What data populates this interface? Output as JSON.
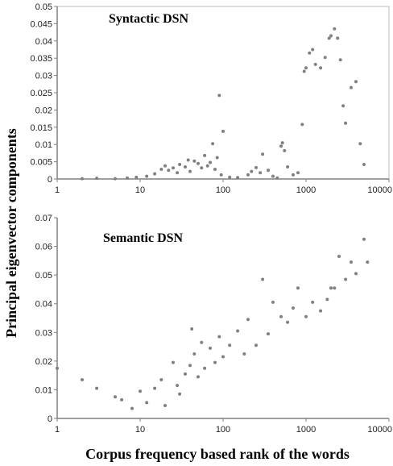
{
  "figure": {
    "ylabel": "Principal eigenvector components",
    "xlabel": "Corpus frequency based rank of the words"
  },
  "colors": {
    "points": "#808080",
    "axis": "#808080",
    "text": "#000000"
  },
  "chart_data": [
    {
      "type": "scatter",
      "title": "Syntactic DSN",
      "xscale": "log",
      "xlim": [
        1,
        10000
      ],
      "ylim": [
        0,
        0.05
      ],
      "xticks": [
        "1",
        "10",
        "100",
        "1000",
        "10000"
      ],
      "yticks": [
        "0",
        "0.005",
        "0.01",
        "0.015",
        "0.02",
        "0.025",
        "0.03",
        "0.035",
        "0.04",
        "0.045",
        "0.05"
      ],
      "grid": false,
      "series": [
        {
          "points": [
            [
              2,
              0.0001
            ],
            [
              3,
              0.0002
            ],
            [
              5,
              0.0001
            ],
            [
              7,
              0.0003
            ],
            [
              9,
              0.0005
            ],
            [
              12,
              0.0008
            ],
            [
              15,
              0.0015
            ],
            [
              18,
              0.0028
            ],
            [
              20,
              0.0038
            ],
            [
              22,
              0.0025
            ],
            [
              25,
              0.0032
            ],
            [
              28,
              0.0018
            ],
            [
              30,
              0.0042
            ],
            [
              35,
              0.0035
            ],
            [
              38,
              0.0055
            ],
            [
              40,
              0.0022
            ],
            [
              45,
              0.0052
            ],
            [
              50,
              0.0045
            ],
            [
              55,
              0.0032
            ],
            [
              60,
              0.0068
            ],
            [
              65,
              0.0038
            ],
            [
              70,
              0.0048
            ],
            [
              75,
              0.0102
            ],
            [
              80,
              0.0028
            ],
            [
              85,
              0.0062
            ],
            [
              90,
              0.0242
            ],
            [
              95,
              0.0012
            ],
            [
              100,
              0.0138
            ],
            [
              120,
              0.0005
            ],
            [
              150,
              0.0004
            ],
            [
              200,
              0.0012
            ],
            [
              220,
              0.0022
            ],
            [
              250,
              0.0033
            ],
            [
              280,
              0.0018
            ],
            [
              300,
              0.0072
            ],
            [
              350,
              0.0025
            ],
            [
              400,
              0.0008
            ],
            [
              450,
              0.0003
            ],
            [
              500,
              0.0095
            ],
            [
              520,
              0.0105
            ],
            [
              550,
              0.0082
            ],
            [
              600,
              0.0035
            ],
            [
              700,
              0.0012
            ],
            [
              800,
              0.0018
            ],
            [
              900,
              0.0158
            ],
            [
              950,
              0.0312
            ],
            [
              1000,
              0.0322
            ],
            [
              1100,
              0.0365
            ],
            [
              1200,
              0.0375
            ],
            [
              1300,
              0.0332
            ],
            [
              1500,
              0.0322
            ],
            [
              1700,
              0.0352
            ],
            [
              1900,
              0.0408
            ],
            [
              2000,
              0.0415
            ],
            [
              2200,
              0.0435
            ],
            [
              2400,
              0.0408
            ],
            [
              2600,
              0.0345
            ],
            [
              2800,
              0.0212
            ],
            [
              3000,
              0.0162
            ],
            [
              3500,
              0.0265
            ],
            [
              4000,
              0.0282
            ],
            [
              4500,
              0.0102
            ],
            [
              5000,
              0.0042
            ]
          ]
        }
      ]
    },
    {
      "type": "scatter",
      "title": "Semantic DSN",
      "xscale": "log",
      "xlim": [
        1,
        10000
      ],
      "ylim": [
        0,
        0.07
      ],
      "xticks": [
        "1",
        "10",
        "100",
        "1000",
        "10000"
      ],
      "yticks": [
        "0",
        "0.01",
        "0.02",
        "0.03",
        "0.04",
        "0.05",
        "0.06",
        "0.07"
      ],
      "grid": false,
      "series": [
        {
          "points": [
            [
              1,
              0.0175
            ],
            [
              2,
              0.0135
            ],
            [
              3,
              0.0105
            ],
            [
              5,
              0.0075
            ],
            [
              6,
              0.0065
            ],
            [
              8,
              0.0035
            ],
            [
              10,
              0.0095
            ],
            [
              12,
              0.0055
            ],
            [
              15,
              0.0105
            ],
            [
              18,
              0.0135
            ],
            [
              20,
              0.0045
            ],
            [
              25,
              0.0195
            ],
            [
              28,
              0.0115
            ],
            [
              30,
              0.0085
            ],
            [
              35,
              0.0155
            ],
            [
              40,
              0.0185
            ],
            [
              42,
              0.0312
            ],
            [
              45,
              0.0225
            ],
            [
              50,
              0.0145
            ],
            [
              55,
              0.0265
            ],
            [
              60,
              0.0175
            ],
            [
              70,
              0.0245
            ],
            [
              80,
              0.0195
            ],
            [
              90,
              0.0285
            ],
            [
              100,
              0.0215
            ],
            [
              120,
              0.0255
            ],
            [
              150,
              0.0305
            ],
            [
              180,
              0.0225
            ],
            [
              200,
              0.0345
            ],
            [
              250,
              0.0255
            ],
            [
              300,
              0.0485
            ],
            [
              350,
              0.0295
            ],
            [
              400,
              0.0405
            ],
            [
              500,
              0.0355
            ],
            [
              600,
              0.0335
            ],
            [
              700,
              0.0385
            ],
            [
              800,
              0.0455
            ],
            [
              1000,
              0.0355
            ],
            [
              1200,
              0.0405
            ],
            [
              1500,
              0.0375
            ],
            [
              1800,
              0.0415
            ],
            [
              2000,
              0.0455
            ],
            [
              2200,
              0.0455
            ],
            [
              2500,
              0.0565
            ],
            [
              3000,
              0.0485
            ],
            [
              3500,
              0.0545
            ],
            [
              4000,
              0.0505
            ],
            [
              5000,
              0.0625
            ],
            [
              5500,
              0.0545
            ]
          ]
        }
      ]
    }
  ]
}
